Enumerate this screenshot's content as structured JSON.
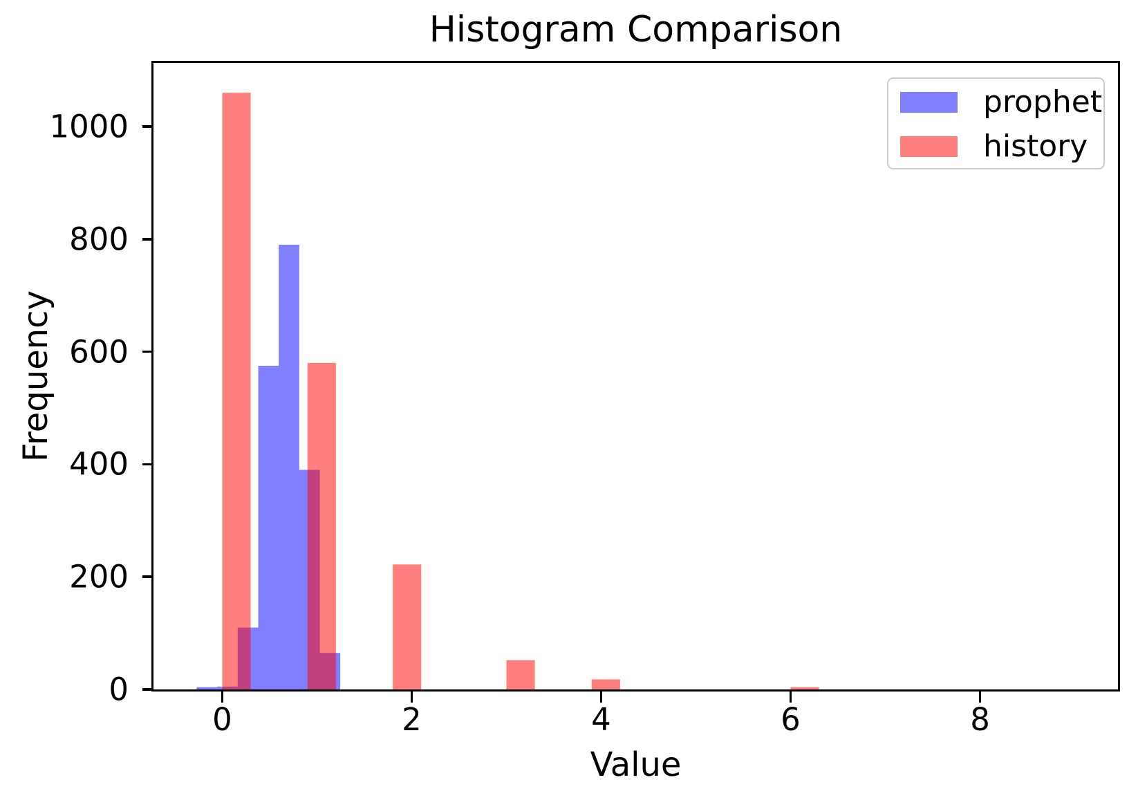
{
  "chart_data": {
    "type": "bar",
    "subtype": "overlapping-histogram",
    "title": "Histogram Comparison",
    "xlabel": "Value",
    "ylabel": "Frequency",
    "xlim": [
      -0.726,
      9.456
    ],
    "ylim": [
      0,
      1113
    ],
    "x_ticks": [
      0,
      2,
      4,
      6,
      8
    ],
    "y_ticks": [
      0,
      200,
      400,
      600,
      800,
      1000
    ],
    "grid": false,
    "legend_position": "upper right",
    "background_color": "#ffffff",
    "spine_color": "#000000",
    "legend_border_color": "#cccccc",
    "series": [
      {
        "name": "prophet",
        "color": "rgba(0,0,255,0.5)",
        "bars": [
          {
            "x0": -0.27,
            "x1": -0.053,
            "count": 4
          },
          {
            "x0": -0.053,
            "x1": 0.163,
            "count": 5
          },
          {
            "x0": 0.163,
            "x1": 0.38,
            "count": 110
          },
          {
            "x0": 0.38,
            "x1": 0.596,
            "count": 575
          },
          {
            "x0": 0.596,
            "x1": 0.813,
            "count": 790
          },
          {
            "x0": 0.813,
            "x1": 1.03,
            "count": 390
          },
          {
            "x0": 1.03,
            "x1": 1.246,
            "count": 65
          }
        ]
      },
      {
        "name": "history",
        "color": "rgba(255,0,0,0.5)",
        "bars": [
          {
            "x0": 0.0,
            "x1": 0.3,
            "count": 1060
          },
          {
            "x0": 0.9,
            "x1": 1.2,
            "count": 580
          },
          {
            "x0": 1.8,
            "x1": 2.1,
            "count": 222
          },
          {
            "x0": 3.0,
            "x1": 3.3,
            "count": 52
          },
          {
            "x0": 3.9,
            "x1": 4.2,
            "count": 18
          },
          {
            "x0": 6.0,
            "x1": 6.3,
            "count": 4
          }
        ]
      }
    ]
  }
}
